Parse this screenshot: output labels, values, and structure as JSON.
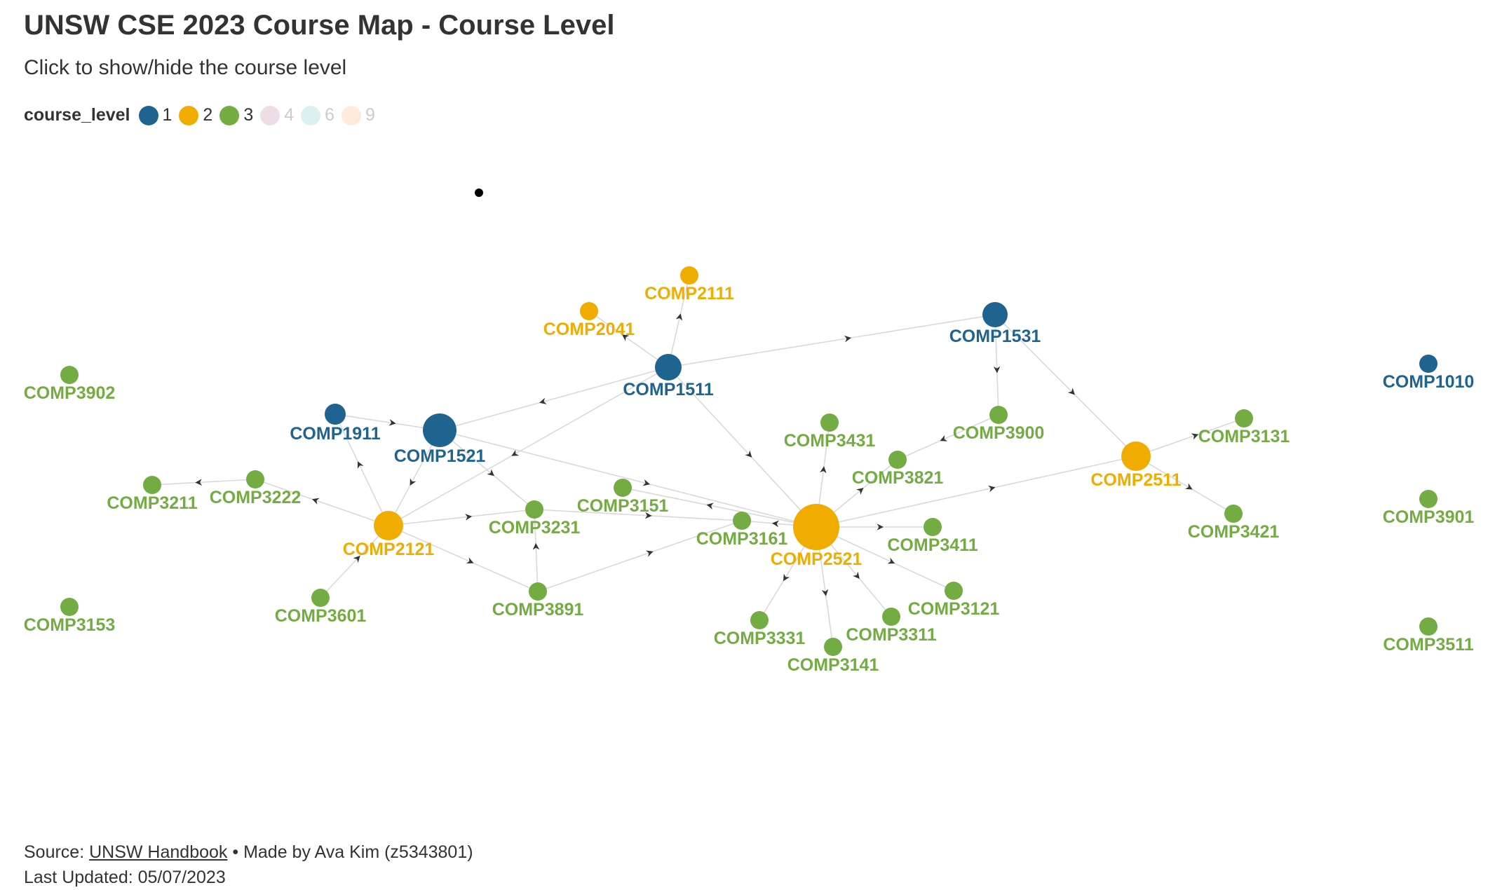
{
  "header": {
    "title": "UNSW CSE 2023 Course Map - Course Level",
    "subtitle": "Click to show/hide the course level"
  },
  "legend": {
    "title": "course_level",
    "items": [
      {
        "label": "1",
        "color": "#1f6391",
        "active": true
      },
      {
        "label": "2",
        "color": "#f0ac00",
        "active": true
      },
      {
        "label": "3",
        "color": "#73ac42",
        "active": true
      },
      {
        "label": "4",
        "color": "#c27ba0",
        "active": false
      },
      {
        "label": "6",
        "color": "#76c7c0",
        "active": false
      },
      {
        "label": "9",
        "color": "#f7b267",
        "active": false
      }
    ]
  },
  "colors": {
    "1": "#1f6391",
    "2": "#f0ac00",
    "3": "#73ac42",
    "edge": "#d9d9d9",
    "arrow": "#333333"
  },
  "nodes": [
    {
      "id": "COMP1511",
      "level": 1
    },
    {
      "id": "COMP1521",
      "level": 1
    },
    {
      "id": "COMP1531",
      "level": 1
    },
    {
      "id": "COMP1911",
      "level": 1
    },
    {
      "id": "COMP1010",
      "level": 1
    },
    {
      "id": "COMP2041",
      "level": 2
    },
    {
      "id": "COMP2111",
      "level": 2
    },
    {
      "id": "COMP2121",
      "level": 2
    },
    {
      "id": "COMP2521",
      "level": 2
    },
    {
      "id": "COMP2511",
      "level": 2
    },
    {
      "id": "COMP3902",
      "level": 3
    },
    {
      "id": "COMP3153",
      "level": 3
    },
    {
      "id": "COMP3211",
      "level": 3
    },
    {
      "id": "COMP3222",
      "level": 3
    },
    {
      "id": "COMP3601",
      "level": 3
    },
    {
      "id": "COMP3231",
      "level": 3
    },
    {
      "id": "COMP3891",
      "level": 3
    },
    {
      "id": "COMP3151",
      "level": 3
    },
    {
      "id": "COMP3161",
      "level": 3
    },
    {
      "id": "COMP3431",
      "level": 3
    },
    {
      "id": "COMP3821",
      "level": 3
    },
    {
      "id": "COMP3900",
      "level": 3
    },
    {
      "id": "COMP3411",
      "level": 3
    },
    {
      "id": "COMP3121",
      "level": 3
    },
    {
      "id": "COMP3311",
      "level": 3
    },
    {
      "id": "COMP3331",
      "level": 3
    },
    {
      "id": "COMP3141",
      "level": 3
    },
    {
      "id": "COMP3131",
      "level": 3
    },
    {
      "id": "COMP3421",
      "level": 3
    },
    {
      "id": "COMP3901",
      "level": 3
    },
    {
      "id": "COMP3511",
      "level": 3
    }
  ],
  "edges": [
    [
      "COMP1511",
      "COMP2041"
    ],
    [
      "COMP1511",
      "COMP2111"
    ],
    [
      "COMP1511",
      "COMP1531"
    ],
    [
      "COMP1511",
      "COMP1521"
    ],
    [
      "COMP1511",
      "COMP2121"
    ],
    [
      "COMP1511",
      "COMP2521"
    ],
    [
      "COMP1911",
      "COMP1521"
    ],
    [
      "COMP1521",
      "COMP2121"
    ],
    [
      "COMP1521",
      "COMP3231"
    ],
    [
      "COMP1521",
      "COMP2521"
    ],
    [
      "COMP1531",
      "COMP3900"
    ],
    [
      "COMP1531",
      "COMP2511"
    ],
    [
      "COMP2121",
      "COMP3222"
    ],
    [
      "COMP2121",
      "COMP1911"
    ],
    [
      "COMP2121",
      "COMP3231"
    ],
    [
      "COMP2121",
      "COMP3891"
    ],
    [
      "COMP3222",
      "COMP3211"
    ],
    [
      "COMP3601",
      "COMP2121"
    ],
    [
      "COMP3891",
      "COMP3231"
    ],
    [
      "COMP3891",
      "COMP3161"
    ],
    [
      "COMP3231",
      "COMP3161"
    ],
    [
      "COMP2521",
      "COMP3151"
    ],
    [
      "COMP2521",
      "COMP3161"
    ],
    [
      "COMP2521",
      "COMP3431"
    ],
    [
      "COMP2521",
      "COMP3821"
    ],
    [
      "COMP2521",
      "COMP3411"
    ],
    [
      "COMP2521",
      "COMP3121"
    ],
    [
      "COMP2521",
      "COMP3311"
    ],
    [
      "COMP2521",
      "COMP3141"
    ],
    [
      "COMP2521",
      "COMP3331"
    ],
    [
      "COMP2521",
      "COMP2511"
    ],
    [
      "COMP3900",
      "COMP3821"
    ],
    [
      "COMP2511",
      "COMP3131"
    ],
    [
      "COMP2511",
      "COMP3421"
    ]
  ],
  "footer": {
    "source_prefix": "Source: ",
    "source_link": "UNSW Handbook",
    "made_by": " • Made by Ava Kim (z5343801)",
    "last_updated": "Last Updated: 05/07/2023"
  }
}
